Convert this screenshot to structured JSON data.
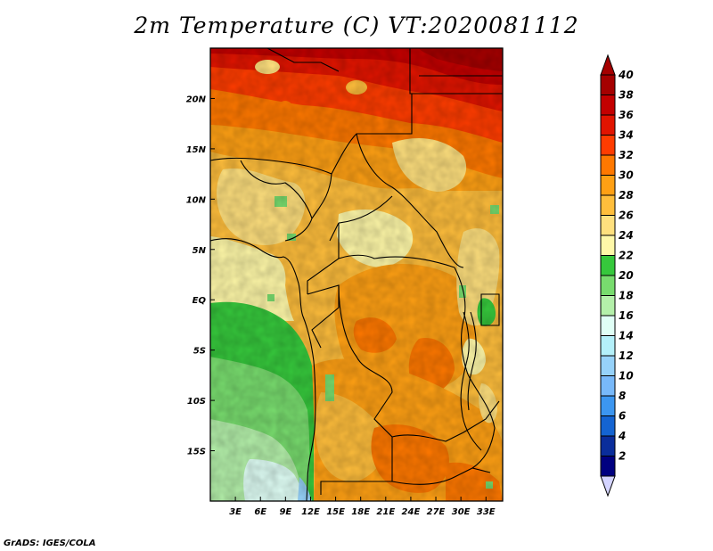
{
  "title": "2m Temperature (C) VT:2020081112",
  "credit": "GrADS: IGES/COLA",
  "map": {
    "lon_range": [
      0,
      35
    ],
    "lat_range": [
      -20,
      25
    ],
    "lon_ticks": [
      {
        "lon": 3,
        "label": "3E"
      },
      {
        "lon": 6,
        "label": "6E"
      },
      {
        "lon": 9,
        "label": "9E"
      },
      {
        "lon": 12,
        "label": "12E"
      },
      {
        "lon": 15,
        "label": "15E"
      },
      {
        "lon": 18,
        "label": "18E"
      },
      {
        "lon": 21,
        "label": "21E"
      },
      {
        "lon": 24,
        "label": "24E"
      },
      {
        "lon": 27,
        "label": "27E"
      },
      {
        "lon": 30,
        "label": "30E"
      },
      {
        "lon": 33,
        "label": "33E"
      }
    ],
    "lat_ticks": [
      {
        "lat": 20,
        "label": "20N"
      },
      {
        "lat": 15,
        "label": "15N"
      },
      {
        "lat": 10,
        "label": "10N"
      },
      {
        "lat": 5,
        "label": "5N"
      },
      {
        "lat": 0,
        "label": "EQ"
      },
      {
        "lat": -5,
        "label": "5S"
      },
      {
        "lat": -10,
        "label": "10S"
      },
      {
        "lat": -15,
        "label": "15S"
      }
    ]
  },
  "colorbar": {
    "levels": [
      {
        "value": "40",
        "color": "#a50000"
      },
      {
        "value": "38",
        "color": "#c30000"
      },
      {
        "value": "36",
        "color": "#e11400"
      },
      {
        "value": "34",
        "color": "#ff3c00"
      },
      {
        "value": "32",
        "color": "#ff7800"
      },
      {
        "value": "30",
        "color": "#ffa014"
      },
      {
        "value": "28",
        "color": "#ffbe3c"
      },
      {
        "value": "26",
        "color": "#ffe07e"
      },
      {
        "value": "24",
        "color": "#fff8a8"
      },
      {
        "value": "22",
        "color": "#36c83c"
      },
      {
        "value": "20",
        "color": "#78dc6e"
      },
      {
        "value": "18",
        "color": "#b4f0aa"
      },
      {
        "value": "16",
        "color": "#e0fff6"
      },
      {
        "value": "14",
        "color": "#b4f0fa"
      },
      {
        "value": "12",
        "color": "#96d2fa"
      },
      {
        "value": "10",
        "color": "#78b9fa"
      },
      {
        "value": "8",
        "color": "#3c96f0"
      },
      {
        "value": "6",
        "color": "#1464d2"
      },
      {
        "value": "4",
        "color": "#0a2d9b"
      },
      {
        "value": "2",
        "color": "#000080"
      }
    ],
    "top_arrow_color": "#a50000",
    "bottom_arrow_color": "#d4d4ff"
  }
}
